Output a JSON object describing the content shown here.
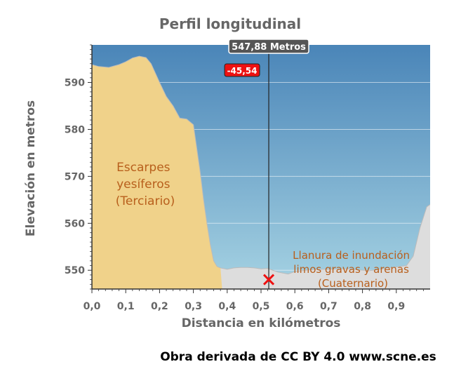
{
  "chart_data": {
    "type": "area",
    "title": "Perfil longitudinal",
    "xlabel": "Distancia en kilómetros",
    "ylabel": "Elevación en metros",
    "xlim": [
      0,
      1.0
    ],
    "ylim": [
      546,
      598
    ],
    "x_ticks": [
      0.0,
      0.1,
      0.2,
      0.3,
      0.4,
      0.5,
      0.6,
      0.7,
      0.8,
      0.9
    ],
    "x_tick_labels": [
      "0,0",
      "0,1",
      "0,2",
      "0,3",
      "0,4",
      "0,5",
      "0,6",
      "0,7",
      "0,8",
      "0,9"
    ],
    "y_ticks": [
      550,
      560,
      570,
      580,
      590
    ],
    "y_tick_labels": [
      "550",
      "560",
      "570",
      "580",
      "590"
    ],
    "grid": true,
    "colors": {
      "sky_top": "#4a85b8",
      "sky_bottom": "#a6d3e3",
      "ground": "#dddddd",
      "escarpment": "#f0d28a",
      "label": "#b85f1c",
      "marker": "#ee1111",
      "tooltip_bg": "#555555",
      "diff_bg": "#ee1111"
    },
    "profile": [
      [
        0.0,
        593.8
      ],
      [
        0.02,
        593.4
      ],
      [
        0.05,
        593.2
      ],
      [
        0.08,
        593.8
      ],
      [
        0.1,
        594.4
      ],
      [
        0.12,
        595.2
      ],
      [
        0.14,
        595.6
      ],
      [
        0.16,
        595.3
      ],
      [
        0.175,
        594.0
      ],
      [
        0.2,
        590.0
      ],
      [
        0.22,
        587.0
      ],
      [
        0.24,
        585.0
      ],
      [
        0.26,
        582.4
      ],
      [
        0.28,
        582.2
      ],
      [
        0.3,
        581.0
      ],
      [
        0.31,
        576.0
      ],
      [
        0.32,
        571.0
      ],
      [
        0.33,
        565.0
      ],
      [
        0.34,
        560.0
      ],
      [
        0.35,
        555.5
      ],
      [
        0.36,
        552.0
      ],
      [
        0.37,
        550.8
      ],
      [
        0.38,
        550.5
      ],
      [
        0.4,
        550.2
      ],
      [
        0.42,
        550.5
      ],
      [
        0.44,
        550.6
      ],
      [
        0.46,
        550.6
      ],
      [
        0.48,
        550.5
      ],
      [
        0.5,
        550.3
      ],
      [
        0.52,
        550.4
      ],
      [
        0.55,
        549.6
      ],
      [
        0.58,
        549.2
      ],
      [
        0.6,
        549.7
      ],
      [
        0.63,
        550.0
      ],
      [
        0.66,
        550.2
      ],
      [
        0.7,
        550.2
      ],
      [
        0.73,
        550.3
      ],
      [
        0.76,
        550.3
      ],
      [
        0.79,
        550.1
      ],
      [
        0.82,
        549.9
      ],
      [
        0.85,
        550.2
      ],
      [
        0.88,
        550.5
      ],
      [
        0.91,
        550.8
      ],
      [
        0.93,
        551.0
      ],
      [
        0.95,
        553.0
      ],
      [
        0.97,
        559.0
      ],
      [
        0.99,
        563.5
      ],
      [
        1.0,
        564.0
      ]
    ],
    "escarpment_end_x": 0.385,
    "cursor": {
      "x": 0.5229,
      "y": 548.0,
      "distance_label": "547,88 Metros",
      "difference_label": "-45,54"
    },
    "annotations": {
      "escarpment": [
        "Escarpes",
        "yesíferos",
        "(Terciario)"
      ],
      "floodplain": [
        "Llanura de inundación",
        "limos gravas y arenas",
        "(Cuaternario)"
      ]
    }
  },
  "credit": "Obra derivada de CC BY 4.0 www.scne.es"
}
